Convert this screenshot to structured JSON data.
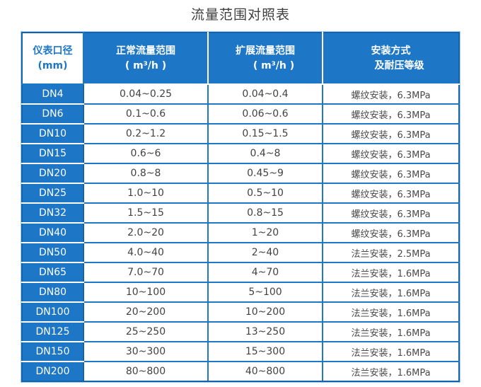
{
  "title": "流量范围对照表",
  "colors": {
    "cell_blue": "#1d76c6",
    "border_dark_blue": "#1263ac",
    "outer_light_edge": "#a9cdee",
    "header_text": "#ffffff",
    "body_text": "#424242",
    "title_text": "#3f3f3f"
  },
  "table": {
    "headers": [
      {
        "line1": "仪表口径",
        "line2": "(mm)"
      },
      {
        "line1": "正常流量范围",
        "line2": "( m³/h )"
      },
      {
        "line1": "扩展流量范围",
        "line2": "( m³/h )"
      },
      {
        "line1": "安装方式",
        "line2": "及耐压等级"
      }
    ],
    "rows": [
      {
        "dn": "DN4",
        "normal": "0.04~0.25",
        "extended": "0.04~0.4",
        "install": "螺纹安装，6.3MPa"
      },
      {
        "dn": "DN6",
        "normal": "0.1~0.6",
        "extended": "0.06~0.6",
        "install": "螺纹安装，6.3MPa"
      },
      {
        "dn": "DN10",
        "normal": "0.2~1.2",
        "extended": "0.15~1.5",
        "install": "螺纹安装，6.3MPa"
      },
      {
        "dn": "DN15",
        "normal": "0.6~6",
        "extended": "0.4~8",
        "install": "螺纹安装，6.3MPa"
      },
      {
        "dn": "DN20",
        "normal": "0.8~8",
        "extended": "0.45~9",
        "install": "螺纹安装，6.3MPa"
      },
      {
        "dn": "DN25",
        "normal": "1.0~10",
        "extended": "0.5~10",
        "install": "螺纹安装，6.3MPa"
      },
      {
        "dn": "DN32",
        "normal": "1.5~15",
        "extended": "0.8~15",
        "install": "螺纹安装，6.3MPa"
      },
      {
        "dn": "DN40",
        "normal": "2.0~20",
        "extended": "1~20",
        "install": "螺纹安装，6.3MPa"
      },
      {
        "dn": "DN50",
        "normal": "4.0~40",
        "extended": "2~40",
        "install": "法兰安装，2.5MPa"
      },
      {
        "dn": "DN65",
        "normal": "7.0~70",
        "extended": "4~70",
        "install": "法兰安装，1.6MPa"
      },
      {
        "dn": "DN80",
        "normal": "10~100",
        "extended": "5~100",
        "install": "法兰安装，1.6MPa"
      },
      {
        "dn": "DN100",
        "normal": "20~200",
        "extended": "10~200",
        "install": "法兰安装，1.6MPa"
      },
      {
        "dn": "DN125",
        "normal": "25~250",
        "extended": "13~250",
        "install": "法兰安装，1.6MPa"
      },
      {
        "dn": "DN150",
        "normal": "30~300",
        "extended": "15~300",
        "install": "法兰安装，1.6MPa"
      },
      {
        "dn": "DN200",
        "normal": "80~800",
        "extended": "40~800",
        "install": "法兰安装，1.6MPa"
      }
    ]
  }
}
